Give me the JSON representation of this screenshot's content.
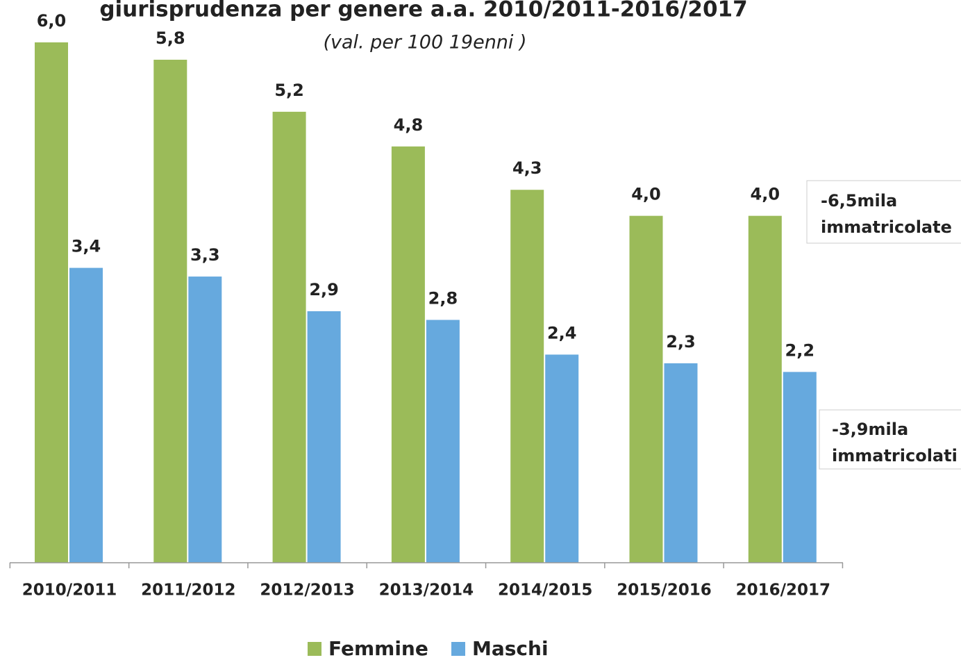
{
  "chart_data": {
    "type": "bar",
    "title": "giurisprudenza per genere a.a. 2010/2011-2016/2017",
    "subtitle": "(val. per 100 19enni )",
    "categories": [
      "2010/2011",
      "2011/2012",
      "2012/2013",
      "2013/2014",
      "2014/2015",
      "2015/2016",
      "2016/2017"
    ],
    "series": [
      {
        "name": "Femmine",
        "color": "#9bbb59",
        "values": [
          6.0,
          5.8,
          5.2,
          4.8,
          4.3,
          4.0,
          4.0
        ],
        "value_labels": [
          "6,0",
          "5,8",
          "5,2",
          "4,8",
          "4,3",
          "4,0",
          "4,0"
        ]
      },
      {
        "name": "Maschi",
        "color": "#66a9de",
        "values": [
          3.4,
          3.3,
          2.9,
          2.8,
          2.4,
          2.3,
          2.2
        ],
        "value_labels": [
          "3,4",
          "3,3",
          "2,9",
          "2,8",
          "2,4",
          "2,3",
          "2,2"
        ]
      }
    ],
    "annotations": [
      {
        "lines": [
          "-6,5mila",
          "immatricolate"
        ]
      },
      {
        "lines": [
          "-3,9mila",
          "immatricolati"
        ]
      }
    ],
    "legend": "bottom"
  }
}
